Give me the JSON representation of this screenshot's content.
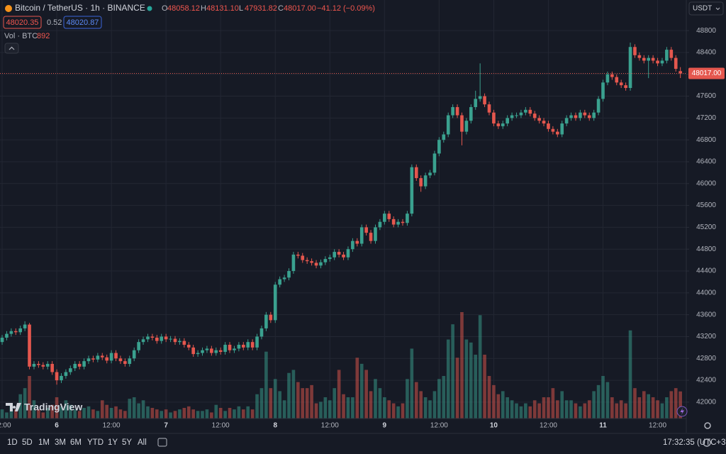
{
  "header": {
    "symbol": "Bitcoin / TetherUS · 1h · BINANCE",
    "ohlc": [
      {
        "key": "O",
        "value": "48058.12"
      },
      {
        "key": "H",
        "value": "48131.10"
      },
      {
        "key": "L",
        "value": "47931.82"
      },
      {
        "key": "C",
        "value": "48017.00"
      }
    ],
    "change": "−41.12 (−0.09%)",
    "bid": "48020.35",
    "spread": "0.52",
    "ask": "48020.87",
    "volume_label": "Vol · BTC",
    "currency": "USDT",
    "logo": "TradingView",
    "timeframes": [
      "1D",
      "5D",
      "1M",
      "3M",
      "6M",
      "YTD",
      "1Y",
      "5Y",
      "All"
    ],
    "clock": "17:32:35 (UTC+3)"
  },
  "chart_data": {
    "type": "candlestick",
    "up_color": "#3aa18f",
    "down_color": "#e5574e",
    "grid": true,
    "xlim": [
      -0.47,
      150.3
    ],
    "ylim": [
      41700,
      49360
    ],
    "yticks": [
      42000,
      42400,
      42800,
      43200,
      43600,
      44000,
      44400,
      44800,
      45200,
      45600,
      46000,
      46400,
      46800,
      47200,
      47600,
      48000,
      48400,
      48800
    ],
    "xticks": [
      {
        "value": 0,
        "label": "12:00"
      },
      {
        "value": 12,
        "label": "6"
      },
      {
        "value": 24,
        "label": "12:00"
      },
      {
        "value": 36,
        "label": "7"
      },
      {
        "value": 48,
        "label": "12:00"
      },
      {
        "value": 60,
        "label": "8"
      },
      {
        "value": 72,
        "label": "12:00"
      },
      {
        "value": 84,
        "label": "9"
      },
      {
        "value": 96,
        "label": "12:00"
      },
      {
        "value": 108,
        "label": "10"
      },
      {
        "value": 120,
        "label": "12:00"
      },
      {
        "value": 132,
        "label": "11"
      },
      {
        "value": 144,
        "label": "12:00"
      }
    ],
    "last_price": {
      "value": 48017,
      "label": "48017.00"
    },
    "open": [
      43100,
      43180,
      43250,
      43300,
      43280,
      43350,
      43420,
      42650,
      42700,
      42680,
      42650,
      42700,
      42550,
      42400,
      42480,
      42550,
      42620,
      42700,
      42650,
      42750,
      42800,
      42780,
      42850,
      42820,
      42760,
      42900,
      42800,
      42750,
      42700,
      42800,
      42950,
      43100,
      43150,
      43200,
      43180,
      43120,
      43200,
      43150,
      43160,
      43100,
      43120,
      43050,
      43000,
      42880,
      42900,
      42950,
      42980,
      42900,
      42950,
      42920,
      43050,
      42950,
      42980,
      43050,
      43000,
      43100,
      43000,
      43200,
      43350,
      43600,
      43500,
      44150,
      44250,
      44280,
      44400,
      44700,
      44680,
      44600,
      44580,
      44550,
      44500,
      44560,
      44620,
      44650,
      44750,
      44700,
      44650,
      44800,
      44950,
      44900,
      45200,
      45100,
      44950,
      45200,
      45300,
      45450,
      45350,
      45250,
      45300,
      45280,
      45450,
      46300,
      46100,
      45950,
      46150,
      46200,
      46550,
      46800,
      46900,
      47250,
      47400,
      47250,
      46950,
      47150,
      47400,
      47550,
      47600,
      47450,
      47300,
      47100,
      47050,
      47100,
      47200,
      47250,
      47250,
      47300,
      47350,
      47280,
      47200,
      47150,
      47100,
      47000,
      46950,
      46900,
      47100,
      47200,
      47250,
      47200,
      47300,
      47250,
      47200,
      47300,
      47550,
      47850,
      48000,
      47950,
      47850,
      47800,
      47750,
      48500,
      48350,
      48300,
      48250,
      48300,
      48250,
      48200,
      48250,
      48450,
      48300,
      48058.12
    ],
    "high": [
      43230,
      43300,
      43350,
      43350,
      43400,
      43480,
      43450,
      42750,
      42750,
      42730,
      42750,
      42750,
      42600,
      42530,
      42600,
      42670,
      42750,
      42750,
      42800,
      42850,
      42850,
      42900,
      42900,
      42870,
      42950,
      42950,
      42850,
      42800,
      42850,
      43000,
      43150,
      43200,
      43250,
      43250,
      43230,
      43250,
      43250,
      43210,
      43210,
      43170,
      43170,
      43100,
      43050,
      42950,
      43000,
      43030,
      43030,
      43000,
      43000,
      43100,
      43100,
      43030,
      43100,
      43100,
      43150,
      43150,
      43250,
      43400,
      43650,
      43650,
      44200,
      44300,
      44330,
      44450,
      44750,
      44750,
      44730,
      44650,
      44630,
      44600,
      44610,
      44670,
      44700,
      44800,
      44800,
      44750,
      44850,
      45000,
      45000,
      45250,
      45250,
      45150,
      45250,
      45350,
      45500,
      45500,
      45400,
      45350,
      45350,
      45500,
      46350,
      46350,
      46150,
      46200,
      46250,
      46600,
      46850,
      46950,
      47300,
      47450,
      47450,
      47300,
      47200,
      47450,
      47700,
      48200,
      47650,
      47500,
      47350,
      47150,
      47150,
      47250,
      47300,
      47300,
      47350,
      47400,
      47400,
      47330,
      47250,
      47200,
      47150,
      47050,
      47000,
      47150,
      47250,
      47300,
      47300,
      47350,
      47350,
      47300,
      47350,
      47600,
      47900,
      48050,
      48050,
      48000,
      47900,
      47850,
      48580,
      48550,
      48400,
      48350,
      48350,
      48350,
      48300,
      48300,
      48500,
      48500,
      48350,
      48131.1
    ],
    "low": [
      43050,
      43130,
      43200,
      43230,
      43230,
      43300,
      42600,
      42600,
      42630,
      42600,
      42600,
      42500,
      42320,
      42350,
      42430,
      42500,
      42570,
      42600,
      42600,
      42700,
      42730,
      42730,
      42770,
      42710,
      42710,
      42750,
      42700,
      42650,
      42650,
      42750,
      42900,
      43050,
      43100,
      43130,
      43070,
      43070,
      43100,
      43100,
      43050,
      43050,
      43000,
      42950,
      42830,
      42830,
      42850,
      42900,
      42850,
      42850,
      42870,
      42870,
      42900,
      42900,
      42930,
      42950,
      42950,
      42950,
      42950,
      43150,
      43300,
      43450,
      43450,
      44100,
      44200,
      44230,
      44350,
      44630,
      44550,
      44530,
      44500,
      44450,
      44450,
      44510,
      44570,
      44600,
      44650,
      44600,
      44600,
      44750,
      44850,
      44850,
      45050,
      44900,
      44900,
      45150,
      45250,
      45300,
      45200,
      45200,
      45230,
      45230,
      45400,
      46050,
      45850,
      45900,
      46100,
      46150,
      46500,
      46750,
      46850,
      47200,
      47200,
      46700,
      46900,
      47100,
      47350,
      47500,
      47400,
      47250,
      47050,
      47000,
      47000,
      47050,
      47150,
      47200,
      47200,
      47250,
      47230,
      47150,
      47100,
      47050,
      46950,
      46900,
      46850,
      46850,
      47050,
      47150,
      47150,
      47150,
      47200,
      47150,
      47150,
      47250,
      47500,
      47800,
      47900,
      47800,
      47750,
      47700,
      47700,
      48300,
      48250,
      48200,
      47930,
      48200,
      48150,
      48150,
      48200,
      48250,
      48050,
      47931.82
    ],
    "close": [
      43180,
      43250,
      43300,
      43280,
      43350,
      43420,
      42650,
      42700,
      42680,
      42650,
      42700,
      42550,
      42400,
      42480,
      42550,
      42620,
      42700,
      42650,
      42750,
      42800,
      42780,
      42850,
      42820,
      42760,
      42900,
      42800,
      42750,
      42700,
      42800,
      42950,
      43100,
      43150,
      43200,
      43180,
      43120,
      43200,
      43150,
      43160,
      43100,
      43120,
      43050,
      43000,
      42880,
      42900,
      42950,
      42980,
      42900,
      42950,
      42920,
      43050,
      42950,
      42980,
      43050,
      43000,
      43100,
      43000,
      43200,
      43350,
      43600,
      43500,
      44150,
      44250,
      44280,
      44400,
      44700,
      44680,
      44600,
      44580,
      44550,
      44500,
      44560,
      44620,
      44650,
      44750,
      44700,
      44650,
      44800,
      44950,
      44900,
      45200,
      45100,
      44950,
      45200,
      45300,
      45450,
      45350,
      45250,
      45300,
      45280,
      45450,
      46300,
      46100,
      45950,
      46150,
      46200,
      46550,
      46800,
      46900,
      47250,
      47400,
      47250,
      46950,
      47150,
      47400,
      47550,
      47600,
      47450,
      47300,
      47100,
      47050,
      47100,
      47200,
      47250,
      47250,
      47300,
      47350,
      47280,
      47200,
      47150,
      47100,
      47000,
      46950,
      46900,
      47100,
      47200,
      47250,
      47200,
      47300,
      47250,
      47200,
      47300,
      47550,
      47850,
      48000,
      47950,
      47850,
      47800,
      47750,
      48500,
      48350,
      48300,
      48250,
      48300,
      48250,
      48200,
      48250,
      48450,
      48300,
      48100,
      48017
    ],
    "volume": [
      300,
      200,
      500,
      300,
      800,
      1000,
      1400,
      600,
      300,
      200,
      350,
      450,
      700,
      400,
      600,
      450,
      300,
      250,
      350,
      400,
      300,
      250,
      600,
      450,
      350,
      400,
      300,
      250,
      650,
      700,
      500,
      600,
      400,
      350,
      300,
      250,
      300,
      200,
      250,
      300,
      350,
      400,
      300,
      250,
      250,
      300,
      200,
      450,
      350,
      250,
      350,
      300,
      400,
      300,
      400,
      300,
      800,
      1000,
      2200,
      1000,
      1300,
      900,
      600,
      1500,
      1600,
      1200,
      1000,
      1000,
      1100,
      500,
      550,
      700,
      600,
      1000,
      1600,
      800,
      700,
      700,
      2000,
      1800,
      1600,
      900,
      1300,
      1000,
      700,
      600,
      500,
      400,
      500,
      1300,
      2300,
      1200,
      900,
      700,
      600,
      900,
      1300,
      1400,
      2600,
      3100,
      2000,
      3500,
      2600,
      2500,
      2100,
      3400,
      2100,
      1400,
      1100,
      800,
      900,
      700,
      600,
      500,
      400,
      500,
      400,
      600,
      500,
      700,
      700,
      1000,
      600,
      900,
      600,
      600,
      500,
      400,
      500,
      600,
      900,
      1100,
      1400,
      1200,
      700,
      500,
      600,
      500,
      2900,
      1000,
      700,
      900,
      800,
      700,
      600,
      500,
      700,
      900,
      1000,
      892
    ]
  }
}
